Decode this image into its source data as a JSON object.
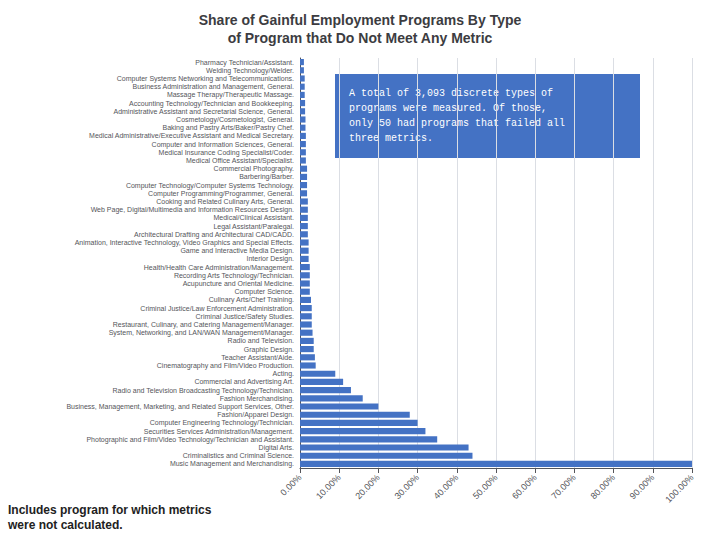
{
  "chart_data": {
    "type": "bar",
    "orientation": "horizontal",
    "title": "Share of Gainful Employment Programs By Type\nof Program that Do Not Meet Any Metric",
    "categories": [
      "Pharmacy Technician/Assistant.",
      "Welding Technology/Welder.",
      "Computer Systems Networking and Telecommunications.",
      "Business Administration and Management, General.",
      "Massage Therapy/Therapeutic Massage.",
      "Accounting Technology/Technician and Bookkeeping.",
      "Administrative Assistant and Secretarial Science, General.",
      "Cosmetology/Cosmetologist, General.",
      "Baking and Pastry Arts/Baker/Pastry Chef.",
      "Medical Administrative/Executive Assistant and Medical Secretary.",
      "Computer and Information Sciences, General.",
      "Medical Insurance Coding Specialist/Coder.",
      "Medical Office Assistant/Specialist.",
      "Commercial Photography.",
      "Barbering/Barber.",
      "Computer Technology/Computer Systems Technology.",
      "Computer Programming/Programmer, General.",
      "Cooking and Related Culinary Arts, General.",
      "Web Page, Digital/Multimedia and Information Resources Design.",
      "Medical/Clinical Assistant.",
      "Legal Assistant/Paralegal.",
      "Architectural Drafting and Architectural CAD/CADD.",
      "Animation, Interactive Technology, Video Graphics and Special Effects.",
      "Game and Interactive Media Design.",
      "Interior Design.",
      "Health/Health Care Administration/Management.",
      "Recording Arts Technology/Technician.",
      "Acupuncture and Oriental Medicine.",
      "Computer Science.",
      "Culinary Arts/Chef Training.",
      "Criminal Justice/Law Enforcement Administration.",
      "Criminal Justice/Safety Studies.",
      "Restaurant, Culinary, and Catering Management/Manager.",
      "System, Networking, and LAN/WAN Management/Manager.",
      "Radio and Television.",
      "Graphic Design.",
      "Teacher Assistant/Aide.",
      "Cinematography and Film/Video Production.",
      "Acting.",
      "Commercial and Advertising Art.",
      "Radio and Television Broadcasting Technology/Technician.",
      "Fashion Merchandising.",
      "Business, Management, Marketing, and Related Support Services, Other.",
      "Fashion/Apparel Design.",
      "Computer Engineering Technology/Technician.",
      "Securities Services Administration/Management.",
      "Photographic and Film/Video Technology/Technician and Assistant.",
      "Digital Arts.",
      "Criminalistics and Criminal Science.",
      "Music Management and Merchandising."
    ],
    "values": [
      1.0,
      1.0,
      1.2,
      1.2,
      1.2,
      1.3,
      1.3,
      1.4,
      1.4,
      1.5,
      1.5,
      1.5,
      1.5,
      1.8,
      1.8,
      1.8,
      1.8,
      2.0,
      2.0,
      2.0,
      2.0,
      2.0,
      2.2,
      2.2,
      2.2,
      2.5,
      2.5,
      2.5,
      2.5,
      2.8,
      3.0,
      3.0,
      3.0,
      3.2,
      3.5,
      3.5,
      3.8,
      4.0,
      9.0,
      11.0,
      13.0,
      16.0,
      20.0,
      28.0,
      30.0,
      32.0,
      35.0,
      43.0,
      44.0,
      100.0
    ],
    "color": "#4472C4",
    "xlim": [
      0,
      100
    ],
    "xticks": [
      {
        "value": 0,
        "label": "0.00%"
      },
      {
        "value": 10,
        "label": "10.00%"
      },
      {
        "value": 20,
        "label": "20.00%"
      },
      {
        "value": 30,
        "label": "30.00%"
      },
      {
        "value": 40,
        "label": "40.00%"
      },
      {
        "value": 50,
        "label": "50.00%"
      },
      {
        "value": 60,
        "label": "60.00%"
      },
      {
        "value": 70,
        "label": "70.00%"
      },
      {
        "value": 80,
        "label": "80.00%"
      },
      {
        "value": 90,
        "label": "90.00%"
      },
      {
        "value": 100,
        "label": "100.00%"
      }
    ],
    "grid": true,
    "annotations": [
      "A total of 3,093 discrete types of\nprograms were measured. Of those,\nonly 50 had programs that failed all\nthree metrics.",
      "Includes program for which metrics\nwere not calculated."
    ]
  }
}
